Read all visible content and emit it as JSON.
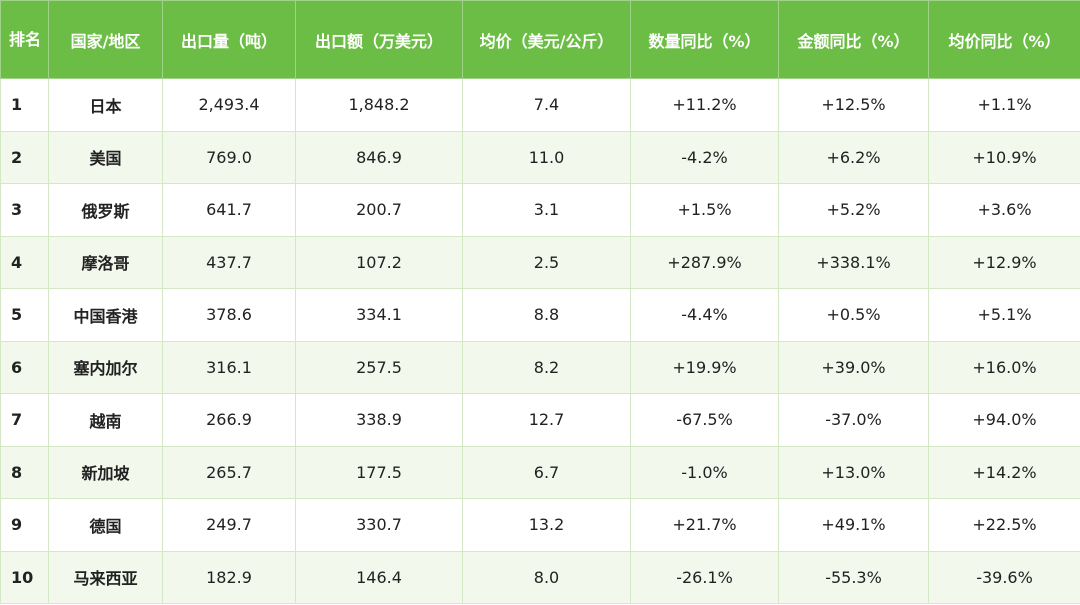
{
  "table": {
    "header": [
      "排名",
      "国家/地区",
      "出口量（吨）",
      "出口额（万美元）",
      "均价（美元/公斤）",
      "数量同比（%）",
      "金额同比（%）",
      "均价同比（%）"
    ],
    "rows": [
      [
        "1",
        "日本",
        "2,493.4",
        "1,848.2",
        "7.4",
        "+11.2%",
        "+12.5%",
        "+1.1%"
      ],
      [
        "2",
        "美国",
        "769.0",
        "846.9",
        "11.0",
        "-4.2%",
        "+6.2%",
        "+10.9%"
      ],
      [
        "3",
        "俄罗斯",
        "641.7",
        "200.7",
        "3.1",
        "+1.5%",
        "+5.2%",
        "+3.6%"
      ],
      [
        "4",
        "摩洛哥",
        "437.7",
        "107.2",
        "2.5",
        "+287.9%",
        "+338.1%",
        "+12.9%"
      ],
      [
        "5",
        "中国香港",
        "378.6",
        "334.1",
        "8.8",
        "-4.4%",
        "+0.5%",
        "+5.1%"
      ],
      [
        "6",
        "塞内加尔",
        "316.1",
        "257.5",
        "8.2",
        "+19.9%",
        "+39.0%",
        "+16.0%"
      ],
      [
        "7",
        "越南",
        "266.9",
        "338.9",
        "12.7",
        "-67.5%",
        "-37.0%",
        "+94.0%"
      ],
      [
        "8",
        "新加坡",
        "265.7",
        "177.5",
        "6.7",
        "-1.0%",
        "+13.0%",
        "+14.2%"
      ],
      [
        "9",
        "德国",
        "249.7",
        "330.7",
        "13.2",
        "+21.7%",
        "+49.1%",
        "+22.5%"
      ],
      [
        "10",
        "马来西亚",
        "182.9",
        "146.4",
        "8.0",
        "-26.1%",
        "-55.3%",
        "-39.6%"
      ]
    ]
  }
}
